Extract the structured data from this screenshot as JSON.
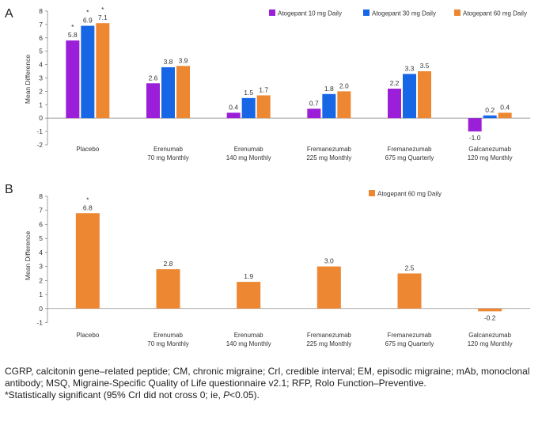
{
  "chart_data": [
    {
      "panel": "A",
      "type": "bar",
      "ylabel": "Mean Difference",
      "ylim": [
        -2,
        8
      ],
      "yticks": [
        -2,
        -1,
        0,
        1,
        2,
        3,
        4,
        5,
        6,
        7,
        8
      ],
      "grid": false,
      "legend_position": "top-right",
      "categories": [
        [
          "Placebo"
        ],
        [
          "Erenumab",
          "70 mg Monthly"
        ],
        [
          "Erenumab",
          "140 mg Monthly"
        ],
        [
          "Fremanezumab",
          "225 mg Monthly"
        ],
        [
          "Fremanezumab",
          "675 mg Quarterly"
        ],
        [
          "Galcanezumab",
          "120 mg Monthly"
        ]
      ],
      "series": [
        {
          "name": "Atogepant 10 mg Daily",
          "color": "#9b1fd8",
          "values": [
            5.8,
            2.6,
            0.4,
            0.7,
            2.2,
            -1.0
          ],
          "labels": [
            "5.8",
            "2.6",
            "0.4",
            "0.7",
            "2.2",
            "-1.0"
          ],
          "significant": [
            true,
            false,
            false,
            false,
            false,
            false
          ]
        },
        {
          "name": "Atogepant 30 mg Daily",
          "color": "#1766e6",
          "values": [
            6.9,
            3.8,
            1.5,
            1.8,
            3.3,
            0.2
          ],
          "labels": [
            "6.9",
            "3.8",
            "1.5",
            "1.8",
            "3.3",
            "0.2"
          ],
          "significant": [
            true,
            false,
            false,
            false,
            false,
            false
          ]
        },
        {
          "name": "Atogepant 60 mg Daily",
          "color": "#ee8731",
          "values": [
            7.1,
            3.9,
            1.7,
            2.0,
            3.5,
            0.4
          ],
          "labels": [
            "7.1",
            "3.9",
            "1.7",
            "2.0",
            "3.5",
            "0.4"
          ],
          "significant": [
            true,
            false,
            false,
            false,
            false,
            false
          ]
        }
      ]
    },
    {
      "panel": "B",
      "type": "bar",
      "ylabel": "Mean Difference",
      "ylim": [
        -1,
        8
      ],
      "yticks": [
        -1,
        0,
        1,
        2,
        3,
        4,
        5,
        6,
        7,
        8
      ],
      "grid": false,
      "legend_position": "top-right",
      "categories": [
        [
          "Placebo"
        ],
        [
          "Erenumab",
          "70 mg Monthly"
        ],
        [
          "Erenumab",
          "140 mg Monthly"
        ],
        [
          "Fremanezumab",
          "225 mg Monthly"
        ],
        [
          "Fremanezumab",
          "675 mg Quarterly"
        ],
        [
          "Galcanezumab",
          "120 mg Monthly"
        ]
      ],
      "series": [
        {
          "name": "Atogepant 60 mg Daily",
          "color": "#ee8731",
          "values": [
            6.8,
            2.8,
            1.9,
            3.0,
            2.5,
            -0.2
          ],
          "labels": [
            "6.8",
            "2.8",
            "1.9",
            "3.0",
            "2.5",
            "-0.2"
          ],
          "significant": [
            true,
            false,
            false,
            false,
            false,
            false
          ]
        }
      ]
    }
  ],
  "significance_marker": "*",
  "footnote": {
    "line1": "CGRP, calcitonin gene–related peptide; CM, chronic migraine; CrI, credible interval; EM, episodic migraine; mAb, monoclonal antibody; MSQ, Migraine-Specific Quality of Life questionnaire v2.1; RFP, Rolo Function–Preventive.",
    "line2_prefix": "*Statistically significant (95% CrI did not cross 0; ie, ",
    "line2_p": "P",
    "line2_suffix": "<0.05)."
  }
}
